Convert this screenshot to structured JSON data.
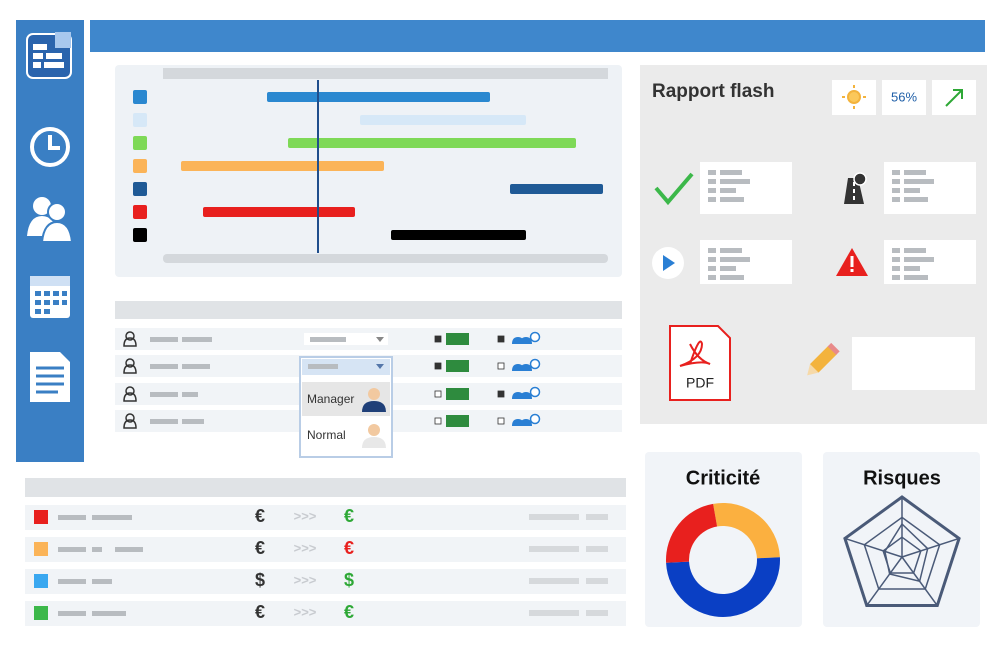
{
  "rapport": {
    "title": "Rapport flash",
    "percent": "56%",
    "pdf": "PDF"
  },
  "team_table": {
    "roles": [
      "Manager",
      "Normal"
    ]
  },
  "finance": {
    "rows": [
      {
        "from": "€",
        "arrow": ">>>",
        "to": "€",
        "to_color": "#2ea836"
      },
      {
        "from": "€",
        "arrow": ">>>",
        "to": "€",
        "to_color": "#e8201e"
      },
      {
        "from": "$",
        "arrow": ">>>",
        "to": "$",
        "to_color": "#2ea836"
      },
      {
        "from": "€",
        "arrow": ">>>",
        "to": "€",
        "to_color": "#2ea836"
      }
    ]
  },
  "chart_data": {
    "type": "pie",
    "title": "Criticité",
    "values": [
      27,
      50,
      23
    ],
    "colors": [
      "#fbb040",
      "#0a3fc4",
      "#e8201e"
    ]
  },
  "risques": {
    "title": "Risques"
  }
}
